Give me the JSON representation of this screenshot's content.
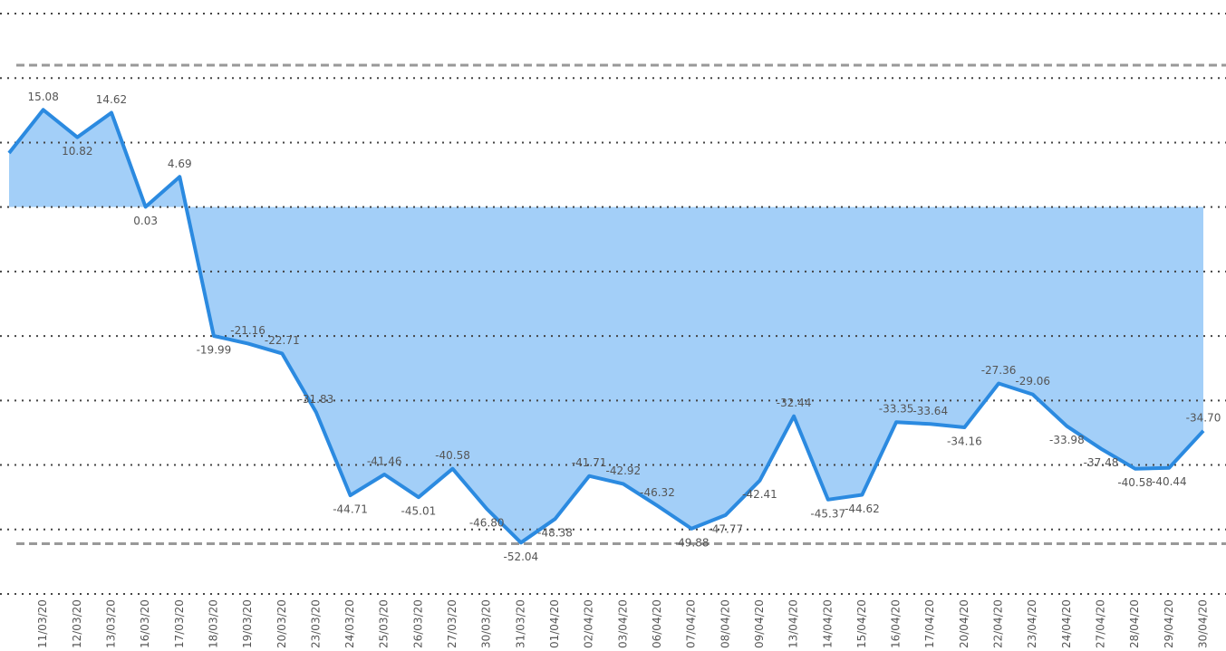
{
  "chart_data": {
    "type": "area",
    "categories": [
      null,
      "11/03/20",
      "12/03/20",
      "13/03/20",
      "16/03/20",
      "17/03/20",
      "18/03/20",
      "19/03/20",
      "20/03/20",
      "23/03/20",
      "24/03/20",
      "25/03/20",
      "26/03/20",
      "27/03/20",
      "30/03/20",
      "31/03/20",
      "01/04/20",
      "02/04/20",
      "03/04/20",
      "06/04/20",
      "07/04/20",
      "08/04/20",
      "09/04/20",
      "13/04/20",
      "14/04/20",
      "15/04/20",
      "16/04/20",
      "17/04/20",
      "20/04/20",
      "22/04/20",
      "23/04/20",
      "24/04/20",
      "27/04/20",
      "28/04/20",
      "29/04/20",
      "30/04/20"
    ],
    "values": [
      8.38,
      15.08,
      10.82,
      14.62,
      0.03,
      4.69,
      -19.99,
      -21.16,
      -22.71,
      -31.83,
      -44.71,
      -41.46,
      -45.01,
      -40.58,
      -46.8,
      -52.04,
      -48.38,
      -41.71,
      -42.92,
      -46.32,
      -49.88,
      -47.77,
      -42.41,
      -32.44,
      -45.37,
      -44.62,
      -33.35,
      -33.64,
      -34.16,
      -27.36,
      -29.06,
      -33.98,
      -37.48,
      -40.58,
      -40.44,
      -34.7
    ],
    "value_labels": [
      null,
      "15.08",
      "10.82",
      "14.62",
      "0.03",
      "4.69",
      "-19.99",
      "-21.16",
      "-22.71",
      "-31.83",
      "-44.71",
      "-41.46",
      "-45.01",
      "-40.58",
      "-46.80",
      "-52.04",
      "-48.38",
      "-41.71",
      "-42.92",
      "-46.32",
      "-49.88",
      "-47.77",
      "-42.41",
      "-32.44",
      "-45.37",
      "-44.62",
      "-33.35",
      "-33.64",
      "-34.16",
      "-27.36",
      "-29.06",
      "-33.98",
      "-37.48",
      "-40.58",
      "-40.44",
      "-34.70"
    ],
    "color": "#2b8ae0",
    "fill": "#a3cff8",
    "ylim": [
      -60,
      30
    ],
    "yticks": [
      -60,
      -50,
      -40,
      -30,
      -20,
      -10,
      0,
      10,
      20,
      30
    ],
    "grid": true,
    "reference_lines": [
      22,
      -52.2
    ]
  }
}
